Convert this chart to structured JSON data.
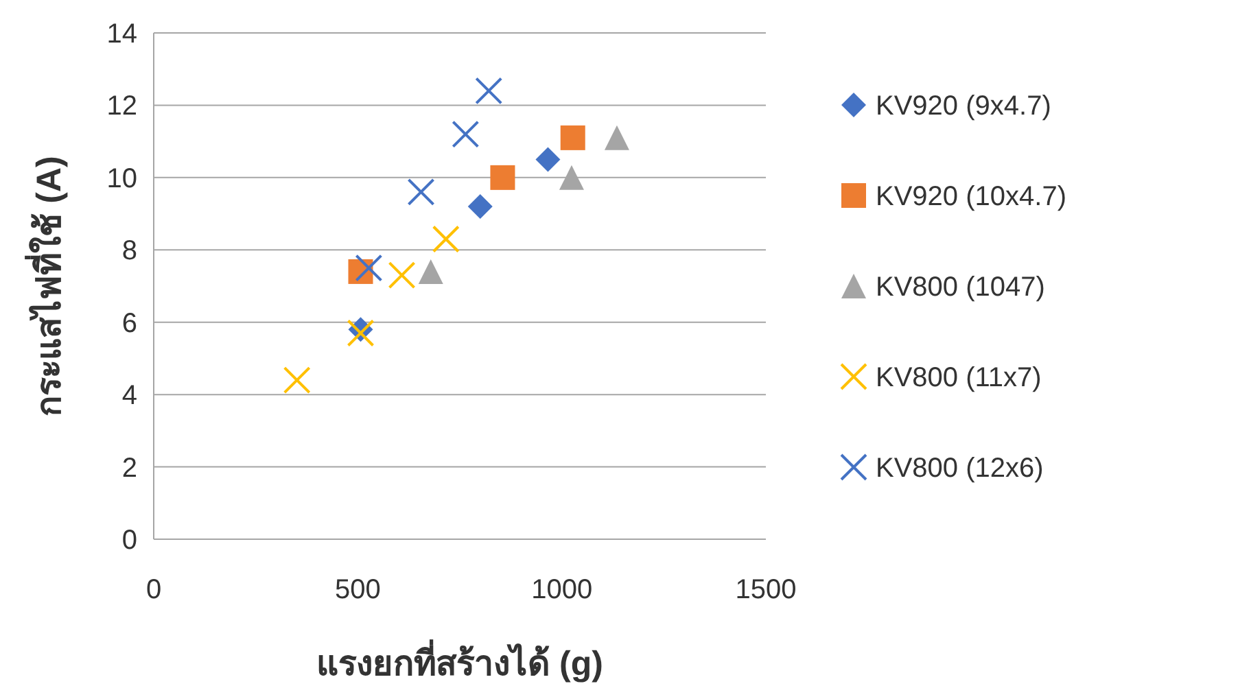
{
  "chart_data": {
    "type": "scatter",
    "xlabel": "แรงยกที่สร้างได้ (g)",
    "ylabel": "กระแสไฟที่ใช้ (A)",
    "xlim": [
      0,
      1500
    ],
    "xticks": [
      0,
      500,
      1000,
      1500
    ],
    "ylim": [
      0,
      14
    ],
    "yticks": [
      0,
      2,
      4,
      6,
      8,
      10,
      12,
      14
    ],
    "grid": "y",
    "legend": "right",
    "series": [
      {
        "name": "KV920 (9x4.7)",
        "color": "#4472c4",
        "marker": "diamond",
        "x": [
          507,
          800,
          966
        ],
        "values": [
          5.8,
          9.2,
          10.5
        ]
      },
      {
        "name": "KV920 (10x4.7)",
        "color": "#ed7d31",
        "marker": "square",
        "x": [
          507,
          855,
          1027
        ],
        "values": [
          7.4,
          10.0,
          11.1
        ]
      },
      {
        "name": "KV800 (1047)",
        "color": "#a5a5a5",
        "marker": "triangle",
        "x": [
          679,
          1024,
          1135
        ],
        "values": [
          7.4,
          10.0,
          11.1
        ]
      },
      {
        "name": "KV800 (11x7)",
        "color": "#ffc000",
        "marker": "cross",
        "x": [
          351,
          507,
          608,
          716
        ],
        "values": [
          4.4,
          5.7,
          7.3,
          8.3
        ]
      },
      {
        "name": "KV800 (12x6)",
        "color": "#4472c4",
        "marker": "cross",
        "x": [
          527,
          655,
          764,
          821
        ],
        "values": [
          7.5,
          9.6,
          11.2,
          12.4
        ]
      }
    ]
  }
}
